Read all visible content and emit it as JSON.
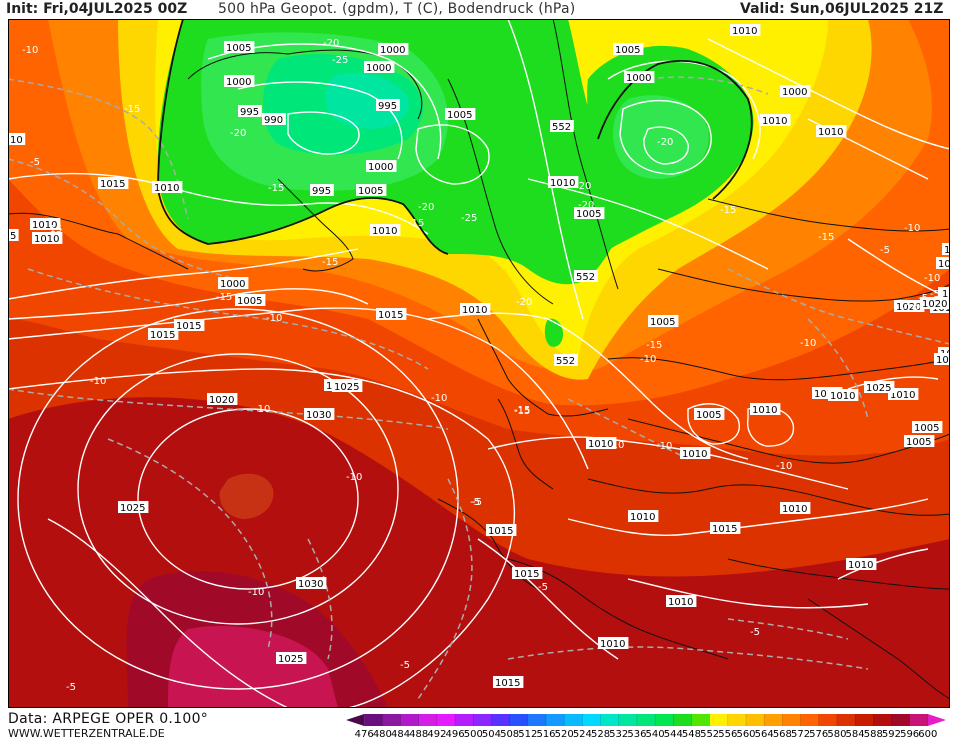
{
  "header": {
    "init": "Init: Fri,04JUL2025 00Z",
    "title": "500 hPa Geopot. (gpdm), T (C), Bodendruck (hPa)",
    "valid": "Valid: Sun,06JUL2025 21Z"
  },
  "footer": {
    "data": "Data: ARPEGE OPER 0.100°",
    "website": "WWW.WETTERZENTRALE.DE"
  },
  "legend": {
    "values": [
      "476",
      "480",
      "484",
      "488",
      "492",
      "496",
      "500",
      "504",
      "508",
      "512",
      "516",
      "520",
      "524",
      "528",
      "532",
      "536",
      "540",
      "544",
      "548",
      "552",
      "556",
      "560",
      "564",
      "568",
      "572",
      "576",
      "580",
      "584",
      "588",
      "592",
      "596",
      "600"
    ],
    "colors": [
      "#4a0a4a",
      "#6a0f80",
      "#8a1aa0",
      "#b01ac8",
      "#d21ee6",
      "#e61aff",
      "#b41eff",
      "#8c28ff",
      "#5a32ff",
      "#2850ff",
      "#1e78ff",
      "#149bff",
      "#0abaff",
      "#00d8ff",
      "#00e6c8",
      "#00e6a0",
      "#00e678",
      "#00e650",
      "#1edc1e",
      "#50e600",
      "#fff000",
      "#ffd700",
      "#ffbe00",
      "#ffa000",
      "#ff8200",
      "#ff6400",
      "#f04600",
      "#dc3200",
      "#c81e00",
      "#b40f0f",
      "#a00a28",
      "#c81478",
      "#e61ec8"
    ]
  },
  "map": {
    "colors": {
      "green": "#1edc1e",
      "green_light": "#32e650",
      "cyan_green": "#00e6a0",
      "yellow": "#ffd700",
      "yellow_light": "#fff000",
      "orange": "#ff8200",
      "orange_red": "#f04600",
      "red": "#dc3200",
      "dark_red": "#b40f0f",
      "crimson": "#a00a28",
      "magenta_red": "#c81450"
    },
    "pressure_labels": [
      "1005",
      "1000",
      "1000",
      "1005",
      "1000",
      "1000",
      "995",
      "990",
      "995",
      "1005",
      "1000",
      "1000",
      "1015",
      "1010",
      "995",
      "1005",
      "1010",
      "1010",
      "1010",
      "1005",
      "1010",
      "1005",
      "1000",
      "1010",
      "1010",
      "1005",
      "1015",
      "1015",
      "1010",
      "1000",
      "1005",
      "1015",
      "1010",
      "1020",
      "1025",
      "1030",
      "1025",
      "1030",
      "1025",
      "1015",
      "1010",
      "1010",
      "1005",
      "1010",
      "1010",
      "1010",
      "1010",
      "1010",
      "1015",
      "1010",
      "1005",
      "1010",
      "1015",
      "1010",
      "1015",
      "1010",
      "1010",
      "1010",
      "1015",
      "1025",
      "1005",
      "1010",
      "1020"
    ],
    "temp_labels": [
      "-10",
      "-15",
      "-5",
      "-20",
      "-25",
      "-20",
      "-20",
      "-15",
      "-20",
      "-15",
      "-20",
      "-20",
      "-25",
      "-15",
      "-15",
      "-15",
      "-10",
      "-15",
      "-10",
      "-20",
      "-15",
      "-10",
      "-5",
      "-10",
      "-10",
      "-10",
      "-15",
      "-15",
      "-10",
      "-5",
      "-10",
      "-10",
      "-5",
      "-5",
      "-5",
      "-5",
      "-5",
      "-10",
      "-10",
      "-10",
      "-10",
      "-15",
      "-5",
      "-10",
      "-5"
    ],
    "geopot_labels": [
      "552",
      "552",
      "552"
    ],
    "left_edge_labels": [
      "10",
      "5"
    ],
    "right_edge_labels": [
      "101",
      "1015",
      "1015",
      "15",
      "1020"
    ]
  }
}
